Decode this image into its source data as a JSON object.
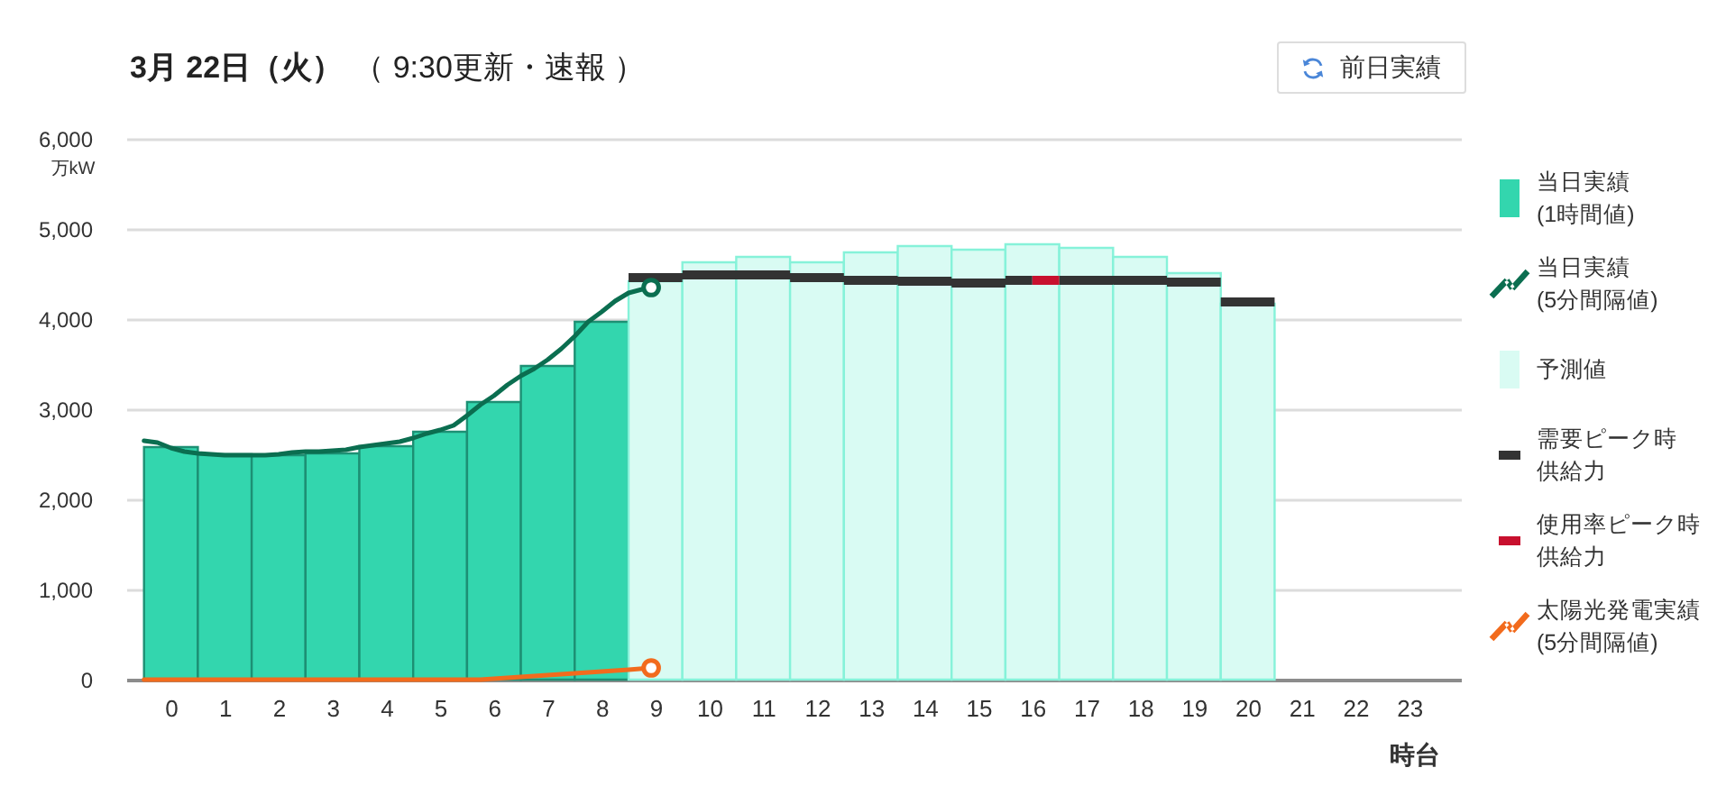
{
  "chart_data": {
    "type": "bar",
    "title": "3月 22日（火）",
    "subtitle": "（ 9:30更新・速報 ）",
    "annotations": [
      "前日実績"
    ],
    "xlabel": "時台",
    "ylabel": "万kW",
    "x": [
      0.5,
      1.5,
      2.5,
      3.5,
      4.5,
      5.5,
      6.5,
      7.5,
      8.5,
      9.5,
      10.5,
      11.5,
      12.5,
      13.5,
      14.5,
      15.5,
      16.5,
      17.5,
      18.5,
      19.5,
      20.5
    ],
    "xlim": [
      -0.33,
      24.46
    ],
    "xticks": [
      {
        "value": 0.5,
        "label": "0"
      },
      {
        "value": 1.5,
        "label": "1"
      },
      {
        "value": 2.5,
        "label": "2"
      },
      {
        "value": 3.5,
        "label": "3"
      },
      {
        "value": 4.5,
        "label": "4"
      },
      {
        "value": 5.5,
        "label": "5"
      },
      {
        "value": 6.5,
        "label": "6"
      },
      {
        "value": 7.5,
        "label": "7"
      },
      {
        "value": 8.5,
        "label": "8"
      },
      {
        "value": 9.5,
        "label": "9"
      },
      {
        "value": 10.5,
        "label": "10"
      },
      {
        "value": 11.5,
        "label": "11"
      },
      {
        "value": 12.5,
        "label": "12"
      },
      {
        "value": 13.5,
        "label": "13"
      },
      {
        "value": 14.5,
        "label": "14"
      },
      {
        "value": 15.5,
        "label": "15"
      },
      {
        "value": 16.5,
        "label": "16"
      },
      {
        "value": 17.5,
        "label": "17"
      },
      {
        "value": 18.5,
        "label": "18"
      },
      {
        "value": 19.5,
        "label": "19"
      },
      {
        "value": 20.5,
        "label": "20"
      },
      {
        "value": 21.5,
        "label": "21"
      },
      {
        "value": 22.5,
        "label": "22"
      },
      {
        "value": 23.5,
        "label": "23"
      }
    ],
    "ylim": [
      0,
      6000
    ],
    "yticks": [
      0,
      {
        "value": 1000,
        "label": "1,000"
      },
      {
        "value": 2000,
        "label": "2,000"
      },
      {
        "value": 3000,
        "label": "3,000"
      },
      {
        "value": 4000,
        "label": "4,000"
      },
      {
        "value": 5000,
        "label": "5,000"
      },
      {
        "value": 6000,
        "label": "6,000"
      }
    ],
    "grid": "y",
    "legend": "right",
    "series": [
      {
        "name": "当日実績(1時間値)",
        "color": "#33d6ae",
        "values": [
          2580,
          2500,
          2490,
          2510,
          2590,
          2750,
          3080,
          3480,
          3970,
          null,
          null,
          null,
          null,
          null,
          null,
          null,
          null,
          null,
          null,
          null,
          null
        ]
      },
      {
        "name": "当日実績(5分間隔値)",
        "type": "line",
        "color": "#0b6e50",
        "x": [
          0,
          0.25,
          0.5,
          0.75,
          1,
          1.25,
          1.5,
          1.75,
          2,
          2.25,
          2.5,
          2.75,
          3,
          3.25,
          3.5,
          3.75,
          4,
          4.25,
          4.5,
          4.75,
          5,
          5.25,
          5.5,
          5.75,
          6,
          6.25,
          6.5,
          6.75,
          7,
          7.25,
          7.5,
          7.75,
          8,
          8.25,
          8.5,
          8.75,
          9,
          9.25,
          9.42
        ],
        "values": [
          2650,
          2630,
          2570,
          2530,
          2510,
          2500,
          2490,
          2490,
          2490,
          2490,
          2500,
          2520,
          2530,
          2530,
          2540,
          2550,
          2580,
          2600,
          2620,
          2640,
          2680,
          2730,
          2770,
          2820,
          2930,
          3050,
          3150,
          3270,
          3370,
          3450,
          3550,
          3670,
          3810,
          3970,
          4080,
          4200,
          4290,
          4330,
          4350
        ]
      },
      {
        "name": "予測値",
        "color": "#d9fbf3",
        "values": [
          null,
          null,
          null,
          null,
          null,
          null,
          null,
          null,
          null,
          4420,
          4630,
          4690,
          4630,
          4740,
          4810,
          4770,
          4830,
          4790,
          4690,
          4510,
          4170
        ]
      },
      {
        "name": "需要ピーク時供給力",
        "type": "line",
        "color": "#333333",
        "x": [
          9,
          10,
          null,
          10,
          11,
          null,
          11,
          12,
          null,
          12,
          13,
          null,
          13,
          14,
          null,
          14,
          15,
          null,
          15,
          16,
          null,
          16,
          16.5,
          null,
          17,
          18,
          null,
          18,
          19,
          null,
          19,
          20,
          null,
          20,
          21
        ],
        "values": [
          4460,
          4460,
          null,
          4490,
          4490,
          null,
          4490,
          4490,
          null,
          4460,
          4460,
          null,
          4430,
          4430,
          null,
          4420,
          4420,
          null,
          4400,
          4400,
          null,
          4430,
          4430,
          null,
          4430,
          4430,
          null,
          4430,
          4430,
          null,
          4410,
          4410,
          null,
          4190,
          4190
        ]
      },
      {
        "name": "使用率ピーク時供給力",
        "type": "line",
        "color": "#c8102e",
        "x": [
          16.5,
          17
        ],
        "values": [
          4430,
          4430
        ]
      },
      {
        "name": "太陽光発電実績(5分間隔値)",
        "type": "line",
        "color": "#f26b1d",
        "x": [
          0,
          1,
          2,
          3,
          4,
          5,
          6,
          6.25,
          6.5,
          7,
          7.5,
          8,
          8.5,
          9,
          9.42
        ],
        "values": [
          0,
          0,
          0,
          0,
          0,
          0,
          0,
          0,
          10,
          30,
          50,
          70,
          90,
          110,
          130
        ]
      },
      {
        "type": "scatter",
        "marker": "circle",
        "color": "#0b6e50",
        "x": [
          9.42
        ],
        "values": [
          4350
        ]
      },
      {
        "type": "scatter",
        "marker": "circle",
        "color": "#f26b1d",
        "x": [
          9.42
        ],
        "values": [
          130
        ]
      }
    ]
  }
}
